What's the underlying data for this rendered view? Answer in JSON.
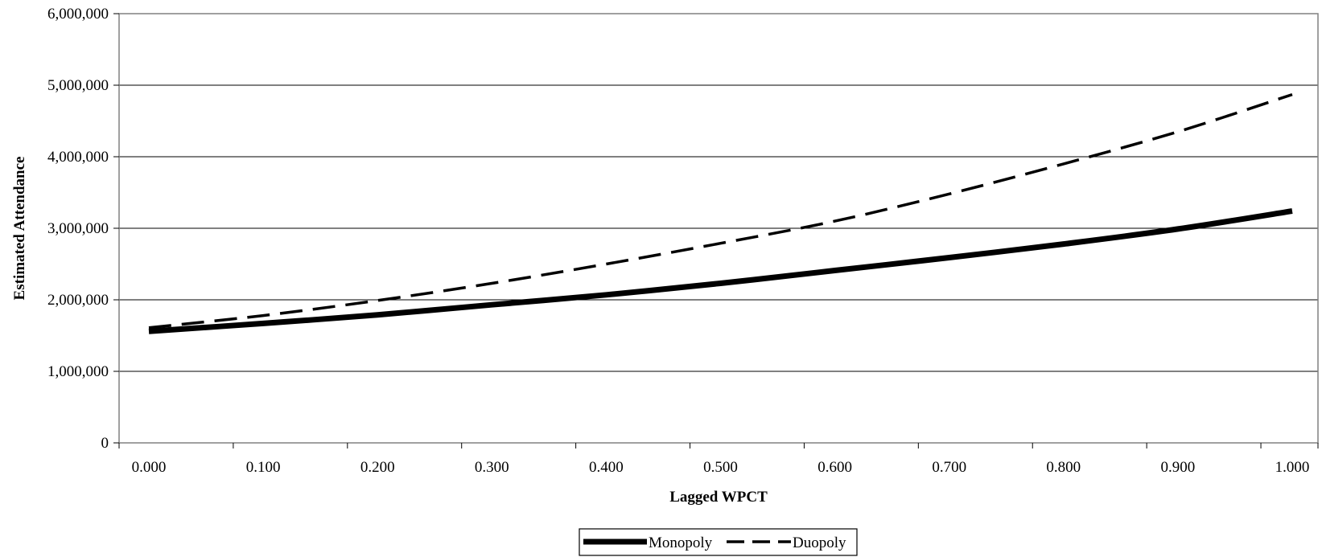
{
  "chart_data": {
    "type": "line",
    "title": "",
    "xlabel": "Lagged WPCT",
    "ylabel": "Estimated Attendance",
    "xlim": [
      0,
      1
    ],
    "ylim": [
      0,
      6000000
    ],
    "x_ticks": [
      "0.000",
      "0.100",
      "0.200",
      "0.300",
      "0.400",
      "0.500",
      "0.600",
      "0.700",
      "0.800",
      "0.900",
      "1.000"
    ],
    "y_ticks": [
      "0",
      "1,000,000",
      "2,000,000",
      "3,000,000",
      "4,000,000",
      "5,000,000",
      "6,000,000"
    ],
    "grid": "horizontal",
    "legend_position": "bottom-center",
    "x": [
      0.0,
      0.1,
      0.2,
      0.3,
      0.4,
      0.5,
      0.6,
      0.7,
      0.8,
      0.9,
      1.0
    ],
    "series": [
      {
        "name": "Monopoly",
        "style": "solid",
        "color": "#000000",
        "values": [
          1560000,
          1670000,
          1790000,
          1930000,
          2070000,
          2230000,
          2410000,
          2590000,
          2780000,
          2990000,
          3240000
        ]
      },
      {
        "name": "Duopoly",
        "style": "dashed",
        "color": "#000000",
        "values": [
          1610000,
          1780000,
          1990000,
          2230000,
          2500000,
          2790000,
          3100000,
          3480000,
          3900000,
          4350000,
          4870000
        ]
      }
    ]
  }
}
